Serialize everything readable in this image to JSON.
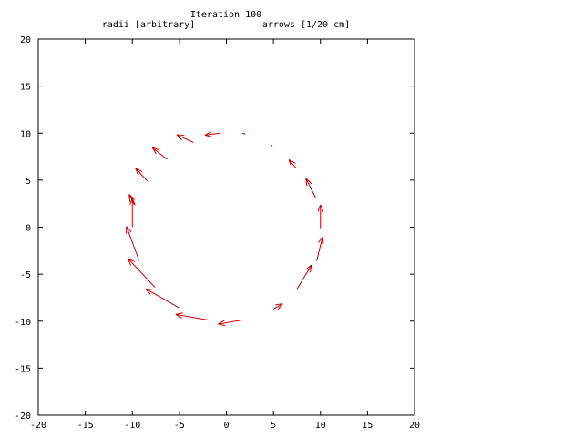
{
  "chart_data": {
    "type": "vector-field",
    "title": "Iteration 100",
    "subtitle_left": "radii [arbitrary]",
    "subtitle_right": "arrows [1/20 cm]",
    "xlim": [
      -20,
      20
    ],
    "ylim": [
      -20,
      20
    ],
    "x_ticks": [
      -20,
      -15,
      -10,
      -5,
      0,
      5,
      10,
      15,
      20
    ],
    "y_ticks": [
      -20,
      -15,
      -10,
      -5,
      0,
      5,
      10,
      15,
      20
    ],
    "grid": false,
    "arrow_color": "#cc0000",
    "arrows": [
      {
        "x": 10.0,
        "y": 0.0,
        "dx": 0.0,
        "dy": 2.3
      },
      {
        "x": 9.5,
        "y": 3.1,
        "dx": -1.0,
        "dy": 2.0
      },
      {
        "x": 7.4,
        "y": 6.3,
        "dx": -0.7,
        "dy": 0.8
      },
      {
        "x": 4.9,
        "y": 8.6,
        "dx": -0.2,
        "dy": 0.2
      },
      {
        "x": 2.0,
        "y": 9.9,
        "dx": -0.3,
        "dy": 0.1
      },
      {
        "x": -0.7,
        "y": 10.0,
        "dx": -1.5,
        "dy": -0.2
      },
      {
        "x": -3.5,
        "y": 9.0,
        "dx": -1.7,
        "dy": 0.8
      },
      {
        "x": -6.3,
        "y": 7.2,
        "dx": -1.5,
        "dy": 1.2
      },
      {
        "x": -8.4,
        "y": 4.9,
        "dx": -1.2,
        "dy": 1.3
      },
      {
        "x": -9.8,
        "y": 2.4,
        "dx": -0.5,
        "dy": 1.0
      },
      {
        "x": -10.0,
        "y": 0.0,
        "dx": 0.0,
        "dy": 3.0
      },
      {
        "x": -9.3,
        "y": -3.5,
        "dx": -1.3,
        "dy": 3.5
      },
      {
        "x": -7.6,
        "y": -6.4,
        "dx": -2.8,
        "dy": 3.0
      },
      {
        "x": -5.0,
        "y": -8.6,
        "dx": -3.5,
        "dy": 2.0
      },
      {
        "x": -1.8,
        "y": -9.9,
        "dx": -3.5,
        "dy": 0.6
      },
      {
        "x": 1.6,
        "y": -9.9,
        "dx": -2.4,
        "dy": -0.4
      },
      {
        "x": 5.0,
        "y": -8.7,
        "dx": 0.9,
        "dy": 0.5
      },
      {
        "x": 7.5,
        "y": -6.6,
        "dx": 1.5,
        "dy": 2.5
      },
      {
        "x": 9.6,
        "y": -3.6,
        "dx": 0.6,
        "dy": 2.5
      },
      {
        "x": 10.0,
        "y": 0.0,
        "dx": 0.0,
        "dy": -0.1
      }
    ]
  }
}
